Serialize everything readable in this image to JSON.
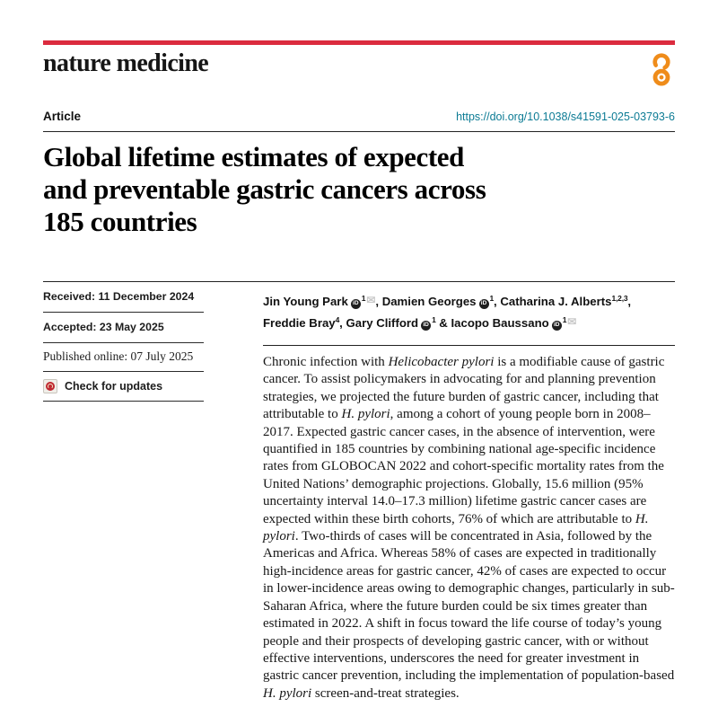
{
  "colors": {
    "accent_bar_red": "#db2b3e",
    "doi_link_teal": "#0c7b94",
    "open_access_orange": "#ef8c1a",
    "orcid_badge_black": "#1f1f1f",
    "crossmark_red": "#bf2a32"
  },
  "header": {
    "journal": "nature medicine",
    "open_access_icon": "open-access-padlock"
  },
  "article_bar": {
    "kicker": "Article",
    "doi": "https://doi.org/10.1038/s41591-025-03793-6"
  },
  "title": {
    "full": "Global lifetime estimates of expected and preventable gastric cancers across 185 countries",
    "lines": [
      "Global lifetime estimates of expected",
      "and preventable gastric cancers across",
      "185 countries"
    ]
  },
  "meta": {
    "received": "Received: 11 December 2024",
    "accepted": "Accepted: 23 May 2025",
    "published": "Published online: 07 July 2025",
    "check_updates": "Check for updates"
  },
  "icons": {
    "orcid_text": "iD",
    "envelope_glyph": "✉"
  },
  "authors": {
    "list": [
      {
        "name": "Jin Young Park",
        "orcid": true,
        "sup": "1",
        "email": true,
        "sep": ", "
      },
      {
        "name": "Damien Georges",
        "orcid": true,
        "sup": "1",
        "email": false,
        "sep": ", "
      },
      {
        "name": "Catharina J. Alberts",
        "orcid": false,
        "sup": "1,2,3",
        "email": false,
        "sep": ", "
      },
      {
        "name": "Freddie Bray",
        "orcid": false,
        "sup": "4",
        "email": false,
        "sep": ", "
      },
      {
        "name": "Gary Clifford",
        "orcid": true,
        "sup": "1",
        "email": false,
        "sep": " & "
      },
      {
        "name": "Iacopo Baussano",
        "orcid": true,
        "sup": "1",
        "email": true,
        "sep": ""
      }
    ]
  },
  "abstract": {
    "segments": [
      {
        "text": "Chronic infection with ",
        "italic": false
      },
      {
        "text": "Helicobacter pylori",
        "italic": true
      },
      {
        "text": " is a modifiable cause of gastric cancer. To assist policymakers in advocating for and planning prevention strategies, we projected the future burden of gastric cancer, including that attributable to ",
        "italic": false
      },
      {
        "text": "H. pylori",
        "italic": true
      },
      {
        "text": ", among a cohort of young people born in 2008–2017. Expected gastric cancer cases, in the absence of intervention, were quantified in 185 countries by combining national age-specific incidence rates from GLOBOCAN 2022 and cohort-specific mortality rates from the United Nations’ demographic projections. Globally, 15.6 million (95% uncertainty interval 14.0–17.3 million) lifetime gastric cancer cases are expected within these birth cohorts, 76% of which are attributable to ",
        "italic": false
      },
      {
        "text": "H. pylori",
        "italic": true
      },
      {
        "text": ". Two-thirds of cases will be concentrated in Asia, followed by the Americas and Africa. Whereas 58% of cases are expected in traditionally high-incidence areas for gastric cancer, 42% of cases are expected to occur in lower-incidence areas owing to demographic changes, particularly in sub-Saharan Africa, where the future burden could be six times greater than estimated in 2022. A shift in focus toward the life course of today’s young people and their prospects of developing gastric cancer, with or without effective interventions, underscores the need for greater investment in gastric cancer prevention, including the implementation of population-based ",
        "italic": false
      },
      {
        "text": "H. pylori",
        "italic": true
      },
      {
        "text": " screen-and-treat strategies.",
        "italic": false
      }
    ]
  }
}
